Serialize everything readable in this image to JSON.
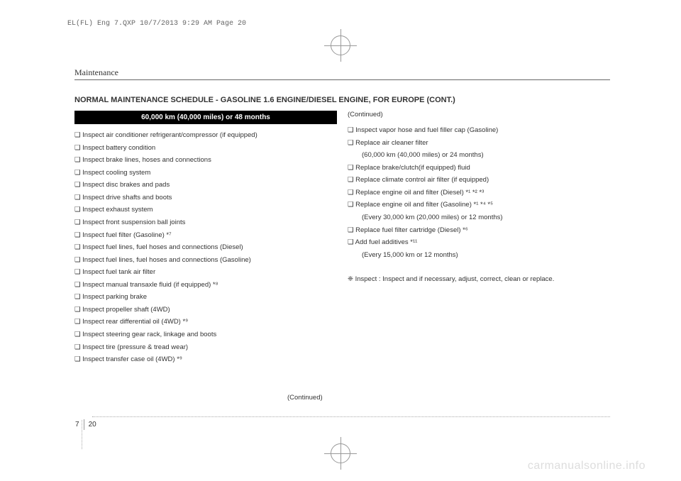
{
  "header_text": "EL(FL) Eng 7.QXP  10/7/2013  9:29 AM  Page 20",
  "section_name": "Maintenance",
  "main_title": "NORMAL MAINTENANCE SCHEDULE - GASOLINE 1.6 ENGINE/DIESEL ENGINE, FOR EUROPE (CONT.)",
  "schedule_header": "60,000 km (40,000 miles) or 48 months",
  "left_items": [
    "❑ Inspect air conditioner refrigerant/compressor (if equipped)",
    "❑ Inspect battery condition",
    "❑ Inspect brake lines, hoses and connections",
    "❑ Inspect cooling system",
    "❑ Inspect disc brakes and pads",
    "❑ Inspect drive shafts and boots",
    "❑ Inspect exhaust system",
    "❑ Inspect front suspension ball joints",
    "❑ Inspect fuel filter (Gasoline) *⁷",
    "❑ Inspect fuel lines, fuel hoses and connections (Diesel)",
    "❑ Inspect fuel lines, fuel hoses and connections (Gasoline)",
    "❑ Inspect fuel tank air filter",
    "❑ Inspect manual transaxle fluid (if equipped) *⁸",
    "❑ Inspect parking brake",
    "❑ Inspect propeller shaft (4WD)",
    "❑ Inspect rear differential oil (4WD) *⁹",
    "❑ Inspect steering gear rack, linkage and boots",
    "❑ Inspect tire (pressure & tread wear)",
    "❑ Inspect transfer case oil (4WD) *⁹"
  ],
  "continued_top": "(Continued)",
  "right_items": [
    {
      "text": "❑ Inspect vapor hose and fuel filler cap (Gasoline)",
      "indent": false
    },
    {
      "text": "❑ Replace air cleaner filter",
      "indent": false
    },
    {
      "text": "(60,000 km (40,000 miles) or 24 months)",
      "indent": true
    },
    {
      "text": "❑ Replace brake/clutch(if equipped) fluid",
      "indent": false
    },
    {
      "text": "❑ Replace climate control air filter (if equipped)",
      "indent": false
    },
    {
      "text": "❑ Replace engine oil and filter (Diesel) *¹ *² *³",
      "indent": false
    },
    {
      "text": "❑ Replace engine oil and filter (Gasoline) *¹ *⁴ *⁵",
      "indent": false
    },
    {
      "text": "(Every 30,000 km (20,000 miles) or 12 months)",
      "indent": true
    },
    {
      "text": "❑ Replace fuel filter cartridge (Diesel) *⁶",
      "indent": false
    },
    {
      "text": "❑ Add fuel additives *¹¹",
      "indent": false
    },
    {
      "text": "(Every 15,000 km or 12 months)",
      "indent": true
    }
  ],
  "inspect_note": "❈ Inspect : Inspect and if necessary, adjust, correct, clean or replace.",
  "continued_bottom": "(Continued)",
  "page_chapter": "7",
  "page_number": "20",
  "watermark": "carmanualsonline.info"
}
